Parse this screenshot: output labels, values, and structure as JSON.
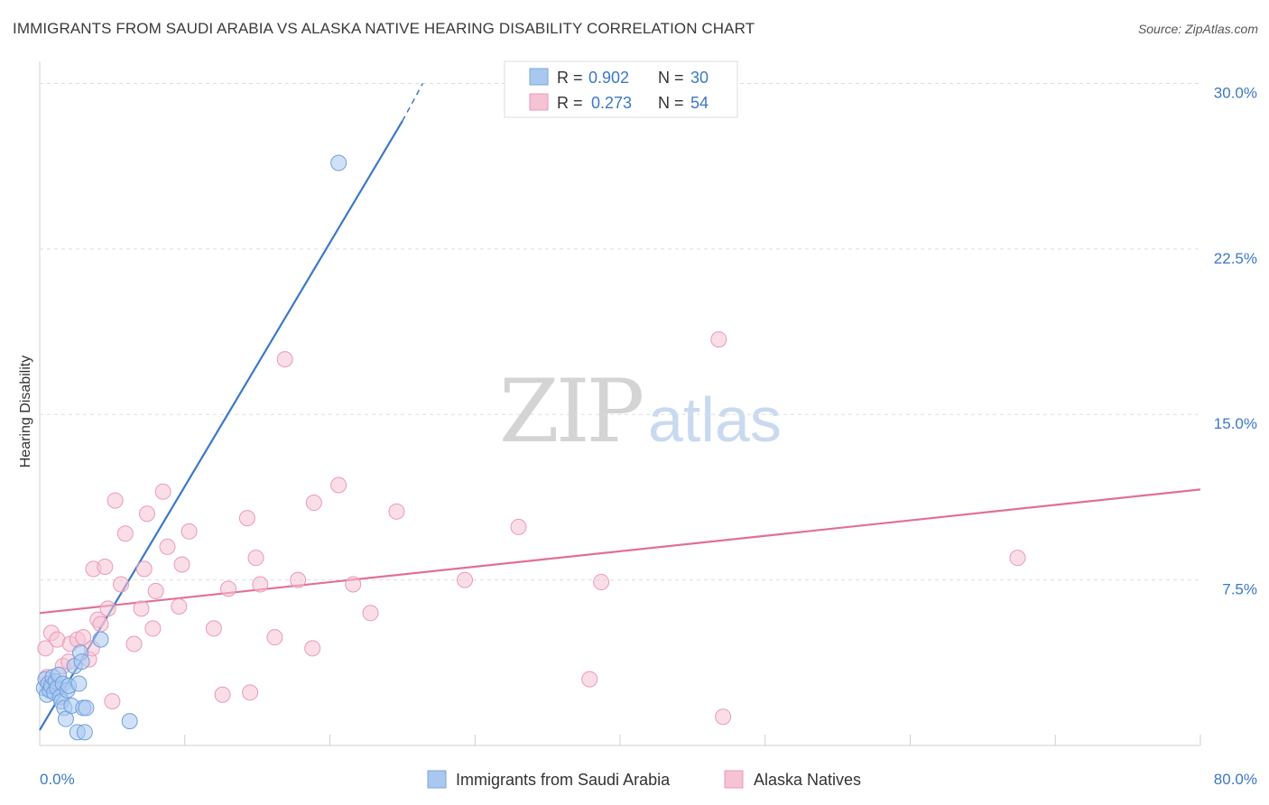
{
  "title": "IMMIGRANTS FROM SAUDI ARABIA VS ALASKA NATIVE HEARING DISABILITY CORRELATION CHART",
  "source": "Source: ZipAtlas.com",
  "watermark": {
    "zip": "ZIP",
    "atlas": "atlas"
  },
  "colors": {
    "blue": "#3b78c8",
    "blue_fill": "#a9c8f0",
    "pink": "#e06f9a",
    "pink_fill": "#f6c3d4",
    "grid": "#dddddd"
  },
  "chart_data": {
    "type": "scatter",
    "title": "IMMIGRANTS FROM SAUDI ARABIA VS ALASKA NATIVE HEARING DISABILITY CORRELATION CHART",
    "xlabel": "",
    "ylabel": "Hearing Disability",
    "xlim": [
      0,
      80
    ],
    "ylim": [
      0,
      31
    ],
    "x_tick_labels": [
      "0.0%",
      "80.0%"
    ],
    "y_ticks": [
      7.5,
      15.0,
      22.5,
      30.0
    ],
    "y_tick_labels": [
      "7.5%",
      "15.0%",
      "22.5%",
      "30.0%"
    ],
    "grid": true,
    "legend_top": [
      {
        "r_label": "R =",
        "r": "0.902",
        "n_label": "N =",
        "n": "30"
      },
      {
        "r_label": "R =",
        "r": "0.273",
        "n_label": "N =",
        "n": "54"
      }
    ],
    "series": [
      {
        "name": "Immigrants from Saudi Arabia",
        "color": "#3b78c8",
        "points": [
          [
            0.3,
            2.6
          ],
          [
            0.4,
            3.0
          ],
          [
            0.5,
            2.3
          ],
          [
            0.6,
            2.8
          ],
          [
            0.7,
            2.5
          ],
          [
            0.8,
            2.7
          ],
          [
            0.9,
            3.1
          ],
          [
            1.0,
            2.4
          ],
          [
            1.1,
            2.9
          ],
          [
            1.2,
            2.6
          ],
          [
            1.3,
            3.2
          ],
          [
            1.4,
            2.2
          ],
          [
            1.5,
            2.0
          ],
          [
            1.6,
            2.8
          ],
          [
            1.7,
            1.7
          ],
          [
            1.8,
            1.2
          ],
          [
            1.9,
            2.5
          ],
          [
            2.0,
            2.7
          ],
          [
            2.2,
            1.8
          ],
          [
            2.4,
            3.6
          ],
          [
            2.6,
            0.6
          ],
          [
            2.7,
            2.8
          ],
          [
            2.8,
            4.2
          ],
          [
            2.9,
            3.8
          ],
          [
            3.0,
            1.7
          ],
          [
            3.1,
            0.6
          ],
          [
            3.2,
            1.7
          ],
          [
            4.2,
            4.8
          ],
          [
            6.2,
            1.1
          ],
          [
            20.6,
            26.4
          ]
        ],
        "trend": {
          "x": [
            0.0,
            25.0
          ],
          "y": [
            0.7,
            28.3
          ],
          "dash_to": [
            26.4,
            30.0
          ]
        }
      },
      {
        "name": "Alaska Natives",
        "color": "#e06f9a",
        "points": [
          [
            0.4,
            4.4
          ],
          [
            0.8,
            5.1
          ],
          [
            1.2,
            4.8
          ],
          [
            1.6,
            3.6
          ],
          [
            2.0,
            3.8
          ],
          [
            2.1,
            4.6
          ],
          [
            2.6,
            4.8
          ],
          [
            3.0,
            4.9
          ],
          [
            3.4,
            3.9
          ],
          [
            3.6,
            4.4
          ],
          [
            3.7,
            8.0
          ],
          [
            4.0,
            5.7
          ],
          [
            4.2,
            5.5
          ],
          [
            4.5,
            8.1
          ],
          [
            4.7,
            6.2
          ],
          [
            5.0,
            2.0
          ],
          [
            5.2,
            11.1
          ],
          [
            5.6,
            7.3
          ],
          [
            5.9,
            9.6
          ],
          [
            6.5,
            4.6
          ],
          [
            7.0,
            6.2
          ],
          [
            7.2,
            8.0
          ],
          [
            7.4,
            10.5
          ],
          [
            7.8,
            5.3
          ],
          [
            8.0,
            7.0
          ],
          [
            8.5,
            11.5
          ],
          [
            8.8,
            9.0
          ],
          [
            9.6,
            6.3
          ],
          [
            9.8,
            8.2
          ],
          [
            10.3,
            9.7
          ],
          [
            12.0,
            5.3
          ],
          [
            12.6,
            2.3
          ],
          [
            13.0,
            7.1
          ],
          [
            14.3,
            10.3
          ],
          [
            14.5,
            2.4
          ],
          [
            14.9,
            8.5
          ],
          [
            15.2,
            7.3
          ],
          [
            16.2,
            4.9
          ],
          [
            16.9,
            17.5
          ],
          [
            17.8,
            7.5
          ],
          [
            18.8,
            4.4
          ],
          [
            18.9,
            11.0
          ],
          [
            20.6,
            11.8
          ],
          [
            21.6,
            7.3
          ],
          [
            22.8,
            6.0
          ],
          [
            24.6,
            10.6
          ],
          [
            29.3,
            7.5
          ],
          [
            33.0,
            9.9
          ],
          [
            37.9,
            3.0
          ],
          [
            38.7,
            7.4
          ],
          [
            46.8,
            18.4
          ],
          [
            47.1,
            1.3
          ],
          [
            67.4,
            8.5
          ],
          [
            0.5,
            3.1
          ]
        ],
        "trend": {
          "x": [
            0.0,
            80.0
          ],
          "y": [
            6.0,
            11.6
          ]
        }
      }
    ]
  }
}
